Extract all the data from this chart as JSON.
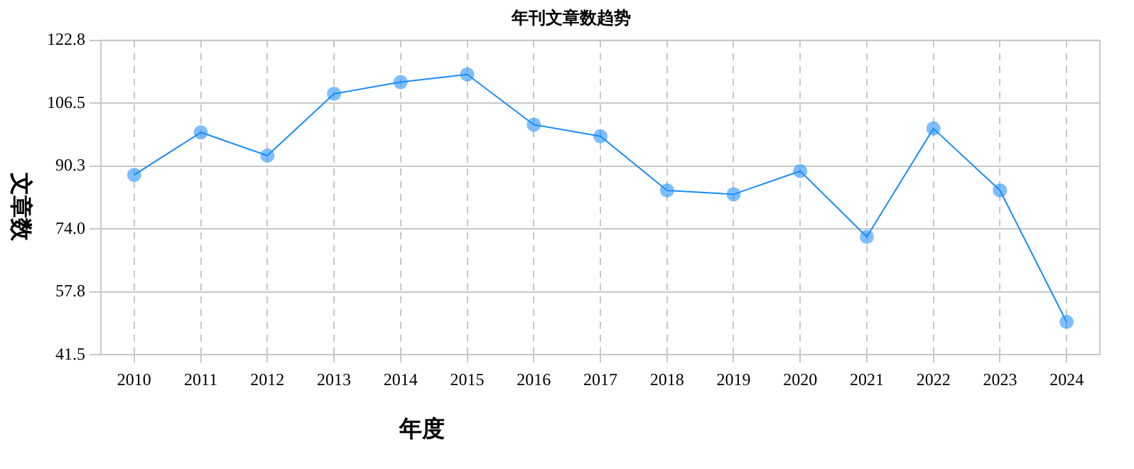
{
  "chart_data": {
    "type": "line",
    "title": "年刊文章数趋势",
    "xlabel": "年度",
    "ylabel": "文章数",
    "categories": [
      "2010",
      "2011",
      "2012",
      "2013",
      "2014",
      "2015",
      "2016",
      "2017",
      "2018",
      "2019",
      "2020",
      "2021",
      "2022",
      "2023",
      "2024"
    ],
    "series": [
      {
        "color": "#1a8cff",
        "values": [
          88,
          99,
          93,
          109,
          112,
          114,
          101,
          98,
          84,
          83,
          89,
          72,
          100,
          84,
          50
        ]
      }
    ],
    "ylim": [
      41.5,
      122.8
    ],
    "yticks": [
      {
        "value": 41.5,
        "label": "41.5"
      },
      {
        "value": 57.8,
        "label": "57.8"
      },
      {
        "value": 74,
        "label": "74.0"
      },
      {
        "value": 90.3,
        "label": "90.3"
      },
      {
        "value": 106.5,
        "label": "106.5"
      },
      {
        "value": 122.8,
        "label": "122.8"
      }
    ],
    "grid": true,
    "legend": false,
    "marker": "circle",
    "line_style": "solid"
  }
}
